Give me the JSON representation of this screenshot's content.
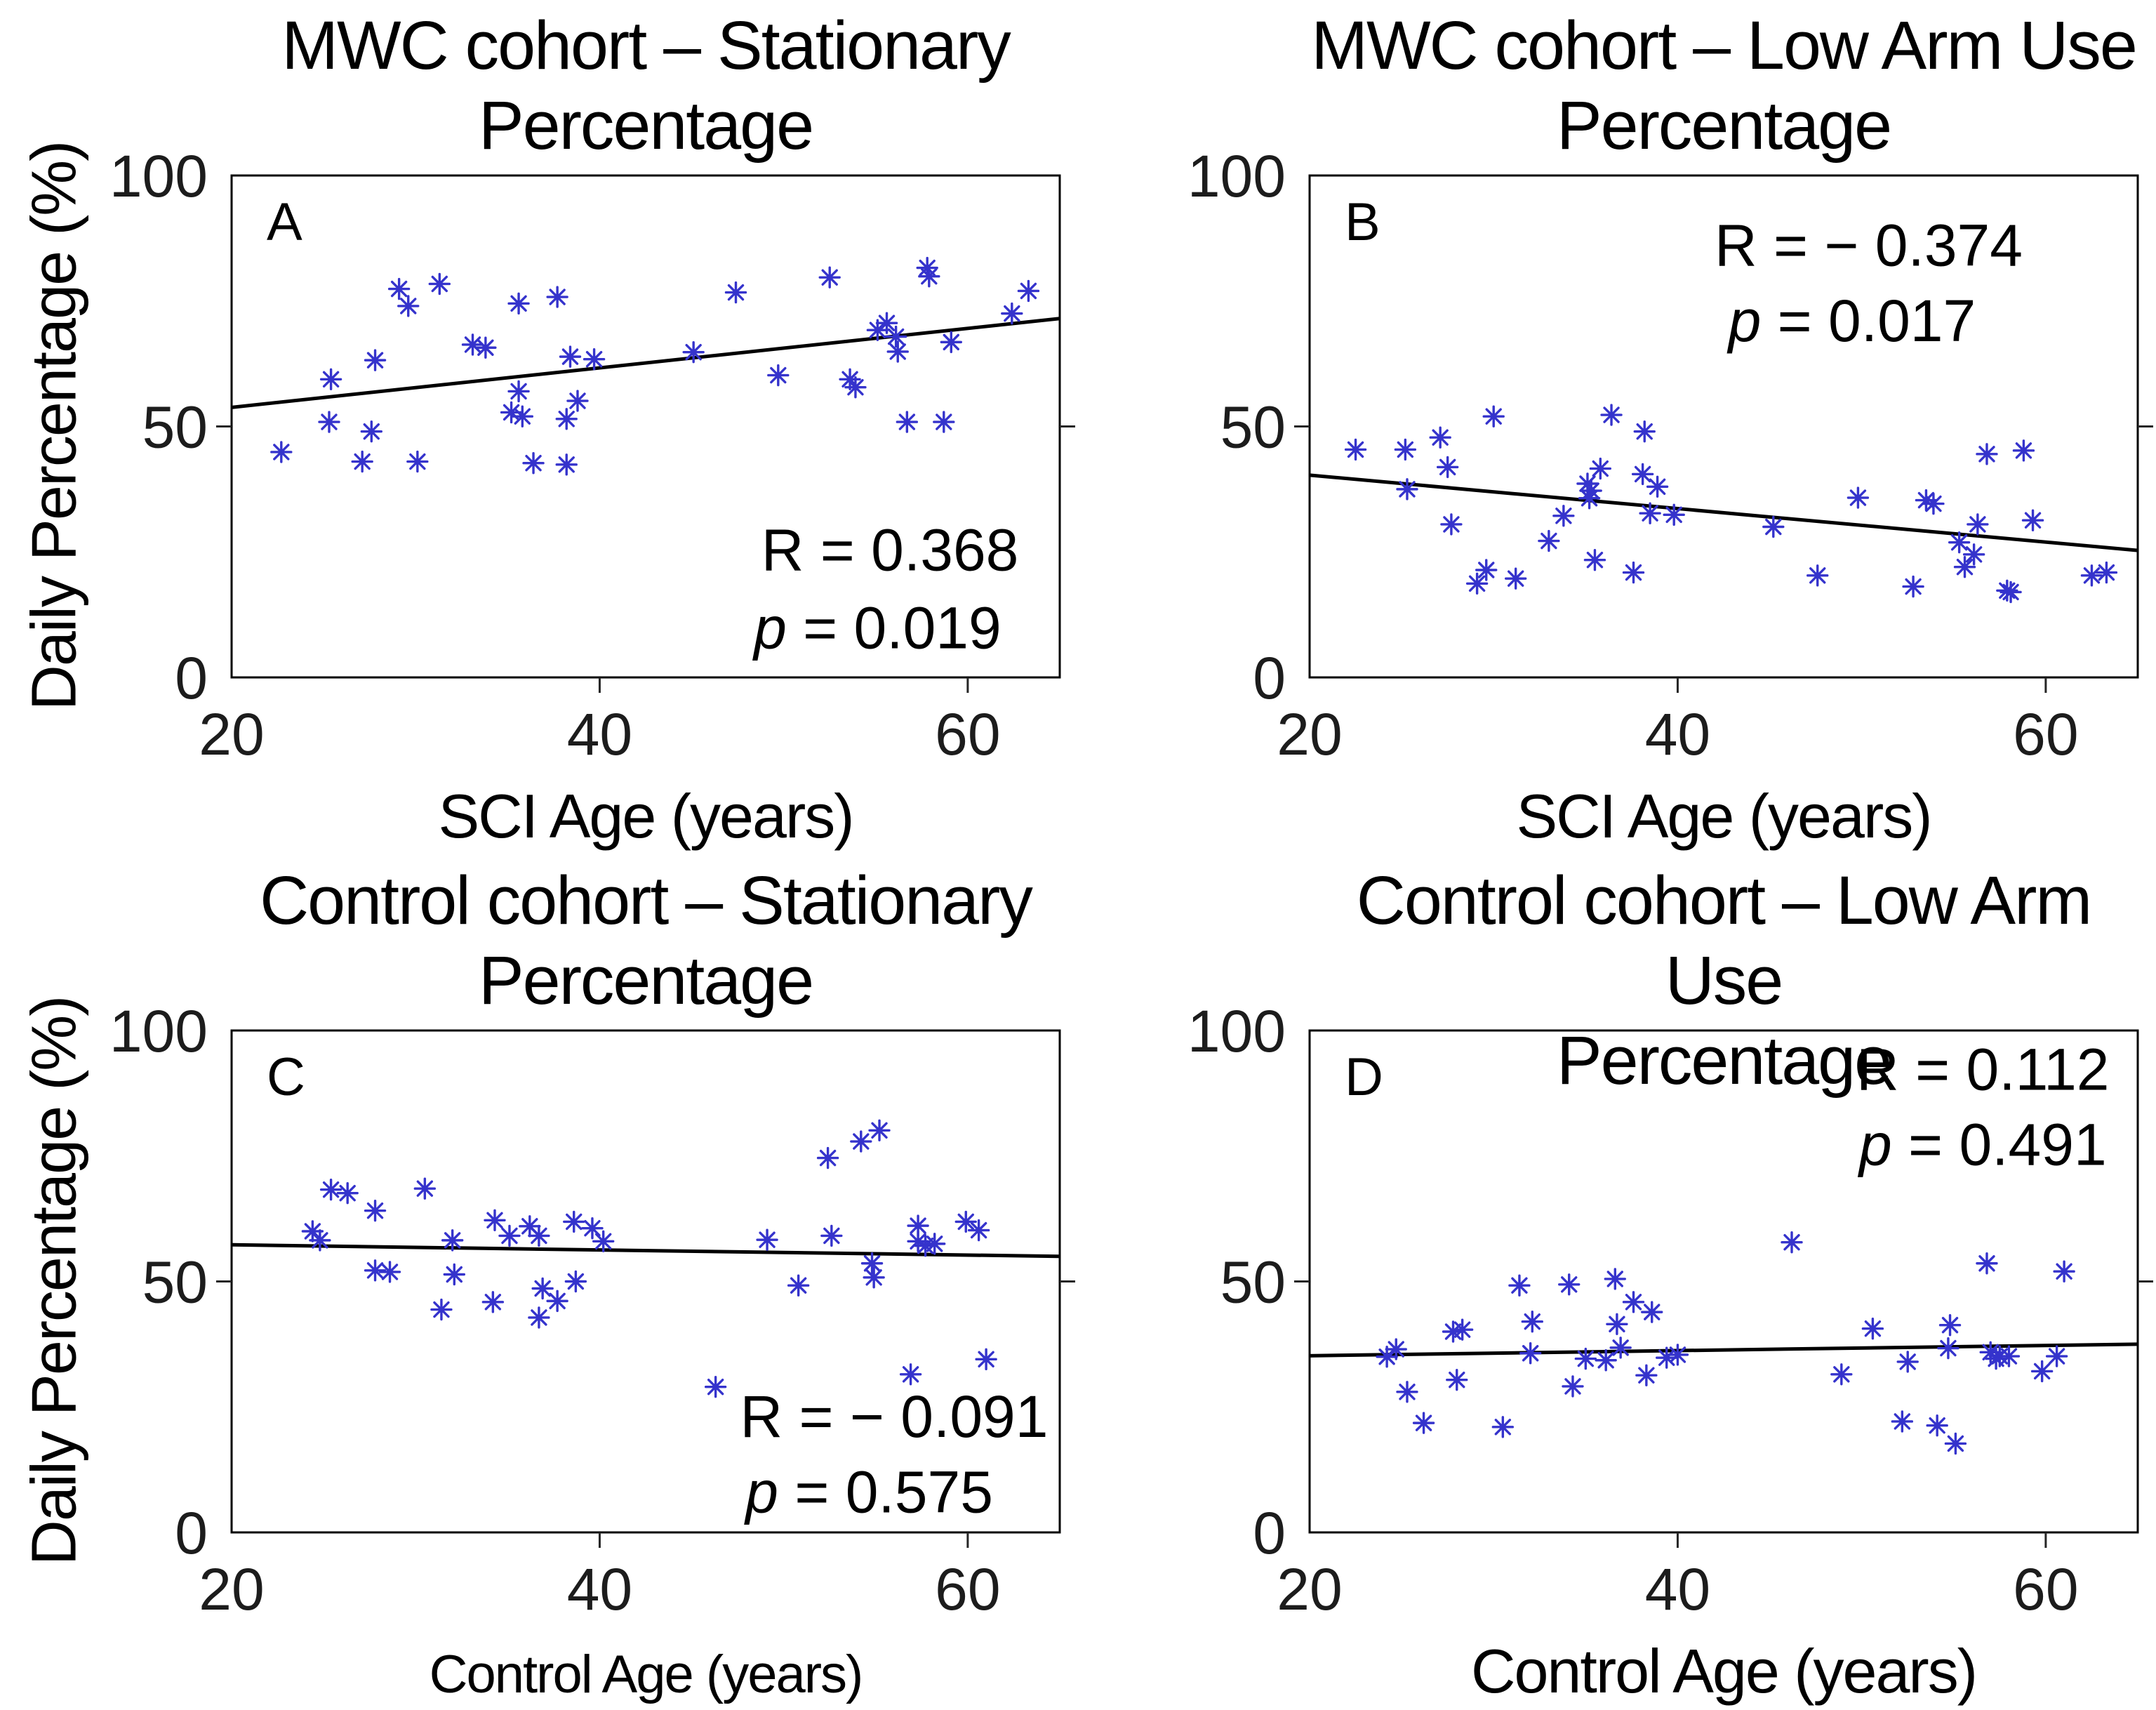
{
  "figure": {
    "background": "#ffffff",
    "marker_color": "#3533cc",
    "fit_line_color": "#000000",
    "axis_color": "#000000",
    "tick_color": "#262626"
  },
  "chart_data": [
    {
      "type": "scatter",
      "letter": "A",
      "title_line1": "MWC cohort – Stationary",
      "title_line2": "Percentage",
      "xlabel": "SCI Age (years)",
      "ylabel": "Daily Percentage (%)",
      "xlim": [
        20,
        65
      ],
      "ylim": [
        0,
        100
      ],
      "xticks": [
        20,
        40,
        60
      ],
      "yticks": [
        0,
        50,
        100
      ],
      "r_label": "R = 0.368",
      "p_label": "p = 0.019",
      "annotation": {
        "rx": 0.795,
        "ry": 0.787,
        "px": 0.78,
        "py": 0.942
      },
      "fit_line": {
        "x": [
          20,
          65
        ],
        "y": [
          53.8,
          71.5
        ]
      },
      "points": [
        [
          22.7,
          44.9
        ],
        [
          25.3,
          50.9
        ],
        [
          25.4,
          59.4
        ],
        [
          27.1,
          43.0
        ],
        [
          27.6,
          49.0
        ],
        [
          27.8,
          63.2
        ],
        [
          29.1,
          77.4
        ],
        [
          29.6,
          74.0
        ],
        [
          30.1,
          43.0
        ],
        [
          31.3,
          78.4
        ],
        [
          33.1,
          66.3
        ],
        [
          33.8,
          65.7
        ],
        [
          35.2,
          52.8
        ],
        [
          35.6,
          74.5
        ],
        [
          35.6,
          57.0
        ],
        [
          35.8,
          52.0
        ],
        [
          36.4,
          42.7
        ],
        [
          37.7,
          75.8
        ],
        [
          38.2,
          51.5
        ],
        [
          38.2,
          42.4
        ],
        [
          38.4,
          63.9
        ],
        [
          38.8,
          55.1
        ],
        [
          39.7,
          63.4
        ],
        [
          45.1,
          64.8
        ],
        [
          47.4,
          76.7
        ],
        [
          49.7,
          60.2
        ],
        [
          52.5,
          79.7
        ],
        [
          53.6,
          59.4
        ],
        [
          53.9,
          57.8
        ],
        [
          55.1,
          69.2
        ],
        [
          55.6,
          70.6
        ],
        [
          56.1,
          67.9
        ],
        [
          56.2,
          64.9
        ],
        [
          56.7,
          50.9
        ],
        [
          57.8,
          81.6
        ],
        [
          57.9,
          79.9
        ],
        [
          58.7,
          50.9
        ],
        [
          59.1,
          66.8
        ],
        [
          62.4,
          72.5
        ],
        [
          63.3,
          77.0
        ]
      ]
    },
    {
      "type": "scatter",
      "letter": "B",
      "title_line1": "MWC cohort – Low Arm Use",
      "title_line2": "Percentage",
      "xlabel": "SCI Age (years)",
      "ylabel": "",
      "xlim": [
        20,
        65
      ],
      "ylim": [
        0,
        100
      ],
      "xticks": [
        20,
        40,
        60
      ],
      "yticks": [
        0,
        50,
        100
      ],
      "r_label": "R = − 0.374",
      "p_label": "p = 0.017",
      "annotation": {
        "rx": 0.675,
        "ry": 0.18,
        "px": 0.655,
        "py": 0.33
      },
      "fit_line": {
        "x": [
          20,
          65
        ],
        "y": [
          40.3,
          25.3
        ]
      },
      "points": [
        [
          22.5,
          45.4
        ],
        [
          25.2,
          45.4
        ],
        [
          25.3,
          37.5
        ],
        [
          27.1,
          47.8
        ],
        [
          27.5,
          41.9
        ],
        [
          27.7,
          30.5
        ],
        [
          29.1,
          18.7
        ],
        [
          29.6,
          21.4
        ],
        [
          30.0,
          52.0
        ],
        [
          31.2,
          19.7
        ],
        [
          33.0,
          27.2
        ],
        [
          33.8,
          32.2
        ],
        [
          35.1,
          38.6
        ],
        [
          35.2,
          35.7
        ],
        [
          35.3,
          37.2
        ],
        [
          35.5,
          23.4
        ],
        [
          35.8,
          41.6
        ],
        [
          36.4,
          52.3
        ],
        [
          37.6,
          20.9
        ],
        [
          38.1,
          40.5
        ],
        [
          38.2,
          49.0
        ],
        [
          38.5,
          32.7
        ],
        [
          38.9,
          38.0
        ],
        [
          39.8,
          32.4
        ],
        [
          45.2,
          30.0
        ],
        [
          47.6,
          20.3
        ],
        [
          49.8,
          35.8
        ],
        [
          52.8,
          18.1
        ],
        [
          53.5,
          35.3
        ],
        [
          53.9,
          34.6
        ],
        [
          55.3,
          26.9
        ],
        [
          55.6,
          22.0
        ],
        [
          56.1,
          24.5
        ],
        [
          56.3,
          30.5
        ],
        [
          56.8,
          44.5
        ],
        [
          57.9,
          17.3
        ],
        [
          58.1,
          17.0
        ],
        [
          58.8,
          45.2
        ],
        [
          59.3,
          31.3
        ],
        [
          62.5,
          20.3
        ],
        [
          63.3,
          20.9
        ]
      ]
    },
    {
      "type": "scatter",
      "letter": "C",
      "title_line1": "Control cohort – Stationary",
      "title_line2": "Percentage",
      "xlabel": "Control Age (years)",
      "ylabel": "Daily Percentage (%)",
      "xlim": [
        20,
        65
      ],
      "ylim": [
        0,
        100
      ],
      "xticks": [
        20,
        40,
        60
      ],
      "yticks": [
        0,
        50,
        100
      ],
      "r_label": "R = − 0.091",
      "p_label": "p = 0.575",
      "annotation": {
        "rx": 0.8,
        "ry": 0.81,
        "px": 0.77,
        "py": 0.96
      },
      "fit_line": {
        "x": [
          20,
          65
        ],
        "y": [
          57.3,
          55.0
        ]
      },
      "points": [
        [
          24.4,
          60.0
        ],
        [
          24.8,
          58.2
        ],
        [
          25.4,
          68.3
        ],
        [
          26.3,
          67.6
        ],
        [
          27.8,
          64.1
        ],
        [
          27.8,
          52.2
        ],
        [
          28.6,
          51.9
        ],
        [
          30.5,
          68.5
        ],
        [
          31.4,
          44.4
        ],
        [
          32.0,
          58.2
        ],
        [
          32.1,
          51.4
        ],
        [
          34.2,
          45.9
        ],
        [
          34.3,
          62.2
        ],
        [
          35.1,
          59.1
        ],
        [
          36.2,
          61.0
        ],
        [
          36.7,
          42.8
        ],
        [
          36.7,
          59.1
        ],
        [
          36.9,
          48.6
        ],
        [
          37.7,
          46.1
        ],
        [
          38.6,
          61.9
        ],
        [
          38.7,
          50.0
        ],
        [
          39.6,
          60.6
        ],
        [
          40.2,
          58.0
        ],
        [
          46.3,
          29.0
        ],
        [
          49.1,
          58.3
        ],
        [
          50.8,
          49.2
        ],
        [
          52.4,
          74.6
        ],
        [
          52.6,
          59.1
        ],
        [
          54.2,
          77.9
        ],
        [
          54.8,
          53.6
        ],
        [
          54.9,
          50.8
        ],
        [
          55.2,
          80.1
        ],
        [
          56.9,
          31.5
        ],
        [
          57.3,
          61.1
        ],
        [
          57.3,
          58.0
        ],
        [
          57.7,
          57.1
        ],
        [
          58.2,
          57.5
        ],
        [
          59.9,
          61.9
        ],
        [
          60.6,
          60.2
        ],
        [
          61.0,
          34.5
        ]
      ]
    },
    {
      "type": "scatter",
      "letter": "D",
      "title_line1": "Control cohort – Low Arm Use",
      "title_line2": "Percentage",
      "xlabel": "Control Age (years)",
      "ylabel": "",
      "xlim": [
        20,
        65
      ],
      "ylim": [
        0,
        100
      ],
      "xticks": [
        20,
        40,
        60
      ],
      "yticks": [
        0,
        50,
        100
      ],
      "r_label": "R = 0.112",
      "p_label": "p = 0.491",
      "annotation": {
        "rx": 0.813,
        "ry": 0.118,
        "px": 0.813,
        "py": 0.268
      },
      "fit_line": {
        "x": [
          20,
          65
        ],
        "y": [
          35.2,
          37.5
        ]
      },
      "points": [
        [
          24.2,
          35.0
        ],
        [
          24.7,
          36.5
        ],
        [
          25.3,
          28.0
        ],
        [
          26.2,
          21.8
        ],
        [
          27.8,
          40.0
        ],
        [
          28.0,
          30.4
        ],
        [
          28.3,
          40.4
        ],
        [
          30.5,
          21.0
        ],
        [
          31.4,
          49.2
        ],
        [
          32.0,
          35.7
        ],
        [
          32.1,
          42.0
        ],
        [
          34.1,
          49.4
        ],
        [
          34.3,
          29.1
        ],
        [
          35.0,
          34.6
        ],
        [
          36.1,
          34.3
        ],
        [
          36.6,
          50.5
        ],
        [
          36.7,
          41.5
        ],
        [
          36.9,
          36.8
        ],
        [
          37.6,
          45.9
        ],
        [
          38.3,
          31.3
        ],
        [
          38.6,
          43.9
        ],
        [
          39.4,
          34.8
        ],
        [
          40.0,
          35.4
        ],
        [
          46.2,
          57.8
        ],
        [
          48.9,
          31.5
        ],
        [
          50.6,
          40.6
        ],
        [
          52.2,
          22.1
        ],
        [
          52.5,
          34.0
        ],
        [
          54.1,
          21.3
        ],
        [
          54.7,
          36.7
        ],
        [
          54.8,
          41.3
        ],
        [
          55.1,
          17.7
        ],
        [
          56.8,
          53.6
        ],
        [
          57.0,
          35.9
        ],
        [
          57.3,
          34.6
        ],
        [
          57.5,
          35.1
        ],
        [
          58.0,
          35.1
        ],
        [
          59.8,
          32.1
        ],
        [
          60.6,
          35.1
        ],
        [
          61.0,
          52.0
        ]
      ]
    }
  ]
}
